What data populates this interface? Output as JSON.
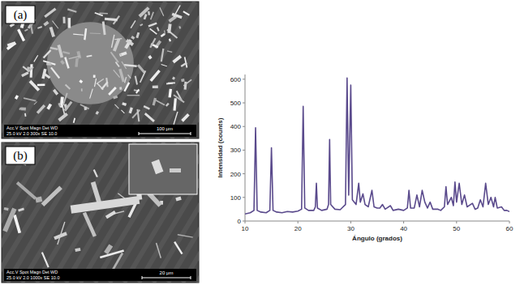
{
  "chart_data": {
    "type": "line",
    "x_label": "Ángulo (grados)",
    "y_label": "Intensidad (counts)",
    "color": "#5a4a8c",
    "x": [
      10,
      11,
      11.7,
      12,
      12.3,
      13,
      14,
      14.7,
      15,
      15.3,
      16,
      17,
      18,
      19,
      20,
      20.7,
      21,
      21.3,
      22,
      23,
      23.3,
      23.5,
      23.7,
      24.5,
      25.5,
      25.8,
      26,
      26.2,
      27,
      28,
      29,
      29.3,
      29.6,
      30,
      30.3,
      31,
      31.5,
      31.8,
      32.3,
      32.7,
      33.3,
      34,
      34.4,
      35,
      35.5,
      36,
      36.5,
      37.5,
      38,
      39,
      40,
      40.7,
      41,
      41.3,
      42,
      42.5,
      43,
      43.5,
      44,
      44.5,
      45,
      45.5,
      46.5,
      47,
      47.7,
      48,
      48.3,
      49,
      49.4,
      49.7,
      50,
      50.5,
      51,
      51.5,
      52,
      53,
      53.5,
      54,
      54.5,
      55,
      55.5,
      56,
      56.5,
      57,
      57.3,
      57.7,
      58.5,
      59,
      59.5,
      60
    ],
    "values": [
      30,
      35,
      45,
      395,
      45,
      38,
      35,
      45,
      310,
      45,
      38,
      35,
      40,
      38,
      42,
      50,
      485,
      55,
      45,
      45,
      60,
      160,
      55,
      45,
      50,
      70,
      345,
      70,
      50,
      48,
      70,
      605,
      110,
      575,
      90,
      70,
      160,
      80,
      115,
      70,
      60,
      130,
      60,
      55,
      55,
      70,
      50,
      65,
      45,
      50,
      45,
      55,
      130,
      55,
      55,
      110,
      60,
      130,
      80,
      55,
      80,
      50,
      50,
      45,
      60,
      145,
      70,
      100,
      65,
      165,
      80,
      160,
      70,
      110,
      60,
      75,
      50,
      55,
      90,
      60,
      160,
      70,
      100,
      60,
      100,
      55,
      60,
      45,
      45,
      40
    ],
    "xlim": [
      10,
      60
    ],
    "xticks": [
      10,
      20,
      30,
      40,
      50,
      60
    ],
    "ylim": [
      0,
      620
    ],
    "yticks": [
      0,
      100,
      200,
      300,
      400,
      500,
      600
    ],
    "grid": false
  },
  "micrographs": [
    {
      "label": "(a)",
      "header": "Acc.V  Spot  Magn    Det  WD",
      "info": "25.0 kV 2.0   300x    SE  10.0",
      "scale": "100 μm"
    },
    {
      "label": "(b)",
      "header": "Acc.V  Spot  Magn    Det  WD",
      "info": "25.0 kV 2.0   1000x   SE  10.0",
      "scale": "20 μm"
    }
  ]
}
